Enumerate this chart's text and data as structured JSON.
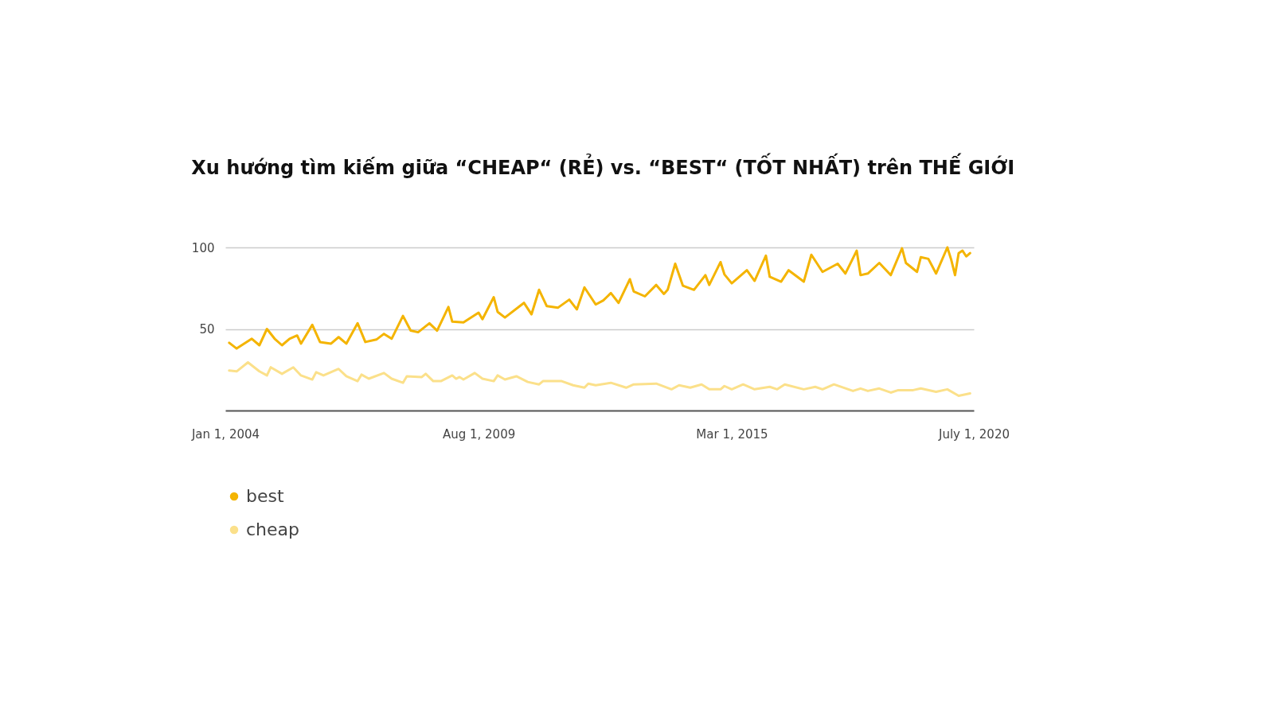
{
  "chart_data": {
    "type": "line",
    "title": "Xu hướng tìm kiếm giữa “CHEAP“ (RẺ) vs. “BEST“ (TỐT NHẤT) trên THẾ GIỚI",
    "xlim": [
      "2004-01-01",
      "2020-07-01"
    ],
    "xticks": [
      {
        "value": "2004-01-01",
        "label": "Jan 1, 2004"
      },
      {
        "value": "2009-08-01",
        "label": "Aug 1, 2009"
      },
      {
        "value": "2015-03-01",
        "label": "Mar 1, 2015"
      },
      {
        "value": "2020-07-01",
        "label": "July 1, 2020"
      }
    ],
    "ylim": [
      0,
      100
    ],
    "yticks": [
      50,
      100
    ],
    "grid": "y",
    "legend": "bottom left",
    "marker": "none",
    "line_style": "solid",
    "series": [
      {
        "name": "best",
        "color": "#f4b400",
        "x": [
          "2004-02",
          "2004-04",
          "2004-08",
          "2004-10",
          "2004-12",
          "2005-02",
          "2005-04",
          "2005-06",
          "2005-08",
          "2005-09",
          "2005-12",
          "2006-02",
          "2006-05",
          "2006-07",
          "2006-09",
          "2006-12",
          "2007-02",
          "2007-05",
          "2007-07",
          "2007-09",
          "2007-12",
          "2008-02",
          "2008-04",
          "2008-07",
          "2008-09",
          "2008-12",
          "2009-01",
          "2009-04",
          "2009-08",
          "2009-09",
          "2009-12",
          "2010-01",
          "2010-03",
          "2010-08",
          "2010-10",
          "2010-12",
          "2011-02",
          "2011-05",
          "2011-08",
          "2011-10",
          "2011-12",
          "2012-03",
          "2012-05",
          "2012-07",
          "2012-09",
          "2012-12",
          "2013-01",
          "2013-04",
          "2013-07",
          "2013-09",
          "2013-10",
          "2013-12",
          "2014-02",
          "2014-05",
          "2014-08",
          "2014-09",
          "2014-12",
          "2015-01",
          "2015-03",
          "2015-07",
          "2015-09",
          "2015-12",
          "2016-01",
          "2016-04",
          "2016-06",
          "2016-10",
          "2016-12",
          "2017-03",
          "2017-07",
          "2017-09",
          "2017-12",
          "2018-01",
          "2018-03",
          "2018-06",
          "2018-09",
          "2018-12",
          "2019-01",
          "2019-04",
          "2019-05",
          "2019-07",
          "2019-09",
          "2019-12",
          "2020-01",
          "2020-02",
          "2020-03",
          "2020-04",
          "2020-05",
          "2020-06"
        ],
        "values": [
          41.5,
          38,
          44,
          40,
          50,
          44,
          40,
          44,
          46,
          41,
          52.5,
          42,
          41,
          45,
          41,
          53.5,
          42,
          43.5,
          47,
          44,
          58,
          49,
          48,
          53.5,
          49,
          63.5,
          54.5,
          54,
          60,
          56,
          69.5,
          60.5,
          57,
          66,
          59,
          74,
          64,
          63,
          68,
          62,
          75.5,
          65,
          67.5,
          72,
          66,
          80.5,
          73,
          70,
          77,
          71.5,
          74,
          90,
          76.5,
          74,
          83,
          77,
          91,
          83.5,
          78,
          86,
          79.5,
          95,
          82,
          79,
          86,
          79,
          95.5,
          85,
          90,
          84,
          98,
          83,
          84,
          90.5,
          83,
          99.5,
          90.5,
          85,
          94,
          93,
          84,
          100,
          92.5,
          83,
          96.5,
          98,
          94.5,
          96.5
        ]
      },
      {
        "name": "cheap",
        "color": "#fbe08a",
        "x": [
          "2004-02",
          "2004-04",
          "2004-07",
          "2004-10",
          "2004-12",
          "2005-01",
          "2005-04",
          "2005-07",
          "2005-09",
          "2005-12",
          "2006-01",
          "2006-03",
          "2006-07",
          "2006-09",
          "2006-12",
          "2007-01",
          "2007-03",
          "2007-07",
          "2007-09",
          "2007-12",
          "2008-01",
          "2008-05",
          "2008-06",
          "2008-08",
          "2008-10",
          "2009-01",
          "2009-02",
          "2009-03",
          "2009-04",
          "2009-07",
          "2009-09",
          "2009-12",
          "2010-01",
          "2010-03",
          "2010-06",
          "2010-09",
          "2010-12",
          "2011-01",
          "2011-06",
          "2011-09",
          "2011-12",
          "2012-01",
          "2012-03",
          "2012-07",
          "2012-11",
          "2013-01",
          "2013-07",
          "2013-11",
          "2014-01",
          "2014-04",
          "2014-07",
          "2014-09",
          "2014-12",
          "2015-01",
          "2015-03",
          "2015-06",
          "2015-09",
          "2016-01",
          "2016-03",
          "2016-05",
          "2016-10",
          "2017-01",
          "2017-03",
          "2017-06",
          "2017-11",
          "2018-01",
          "2018-03",
          "2018-06",
          "2018-09",
          "2018-11",
          "2019-03",
          "2019-05",
          "2019-09",
          "2019-12",
          "2020-03",
          "2020-06"
        ],
        "values": [
          24.5,
          24,
          29.5,
          24,
          21.5,
          26.5,
          22.5,
          26.5,
          21.5,
          19,
          23.5,
          21.5,
          25.5,
          21,
          18,
          22,
          19.5,
          23,
          19.5,
          17,
          21,
          20.5,
          22.5,
          18,
          18,
          21.5,
          19.5,
          20.5,
          19,
          23,
          19.5,
          18,
          21.5,
          19,
          21,
          17.5,
          16,
          18,
          18,
          15.5,
          14,
          16.5,
          15.5,
          17,
          14,
          16,
          16.5,
          13,
          15.5,
          14,
          16,
          13,
          13,
          15,
          13,
          16,
          13,
          14.5,
          13,
          16,
          13,
          14.5,
          13,
          16,
          12,
          13.5,
          12,
          13.5,
          11,
          12.5,
          12.5,
          13.5,
          11.5,
          13,
          9,
          10.5
        ]
      }
    ]
  }
}
